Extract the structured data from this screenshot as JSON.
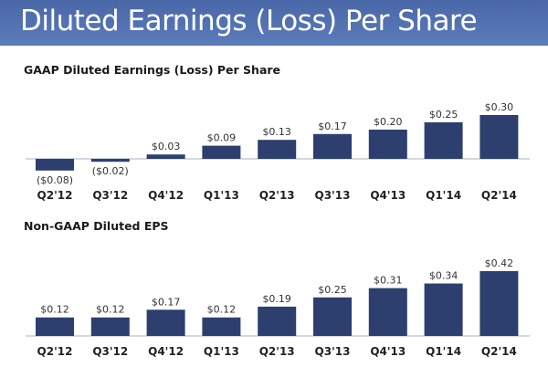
{
  "header": {
    "title": "Diluted Earnings (Loss) Per Share"
  },
  "colors": {
    "bar": "#2c3f6e",
    "header": "#4f6fae",
    "axis": "#a8b0c0"
  },
  "chart_data": [
    {
      "type": "bar",
      "title": "GAAP Diluted Earnings (Loss) Per Share",
      "categories": [
        "Q2'12",
        "Q3'12",
        "Q4'12",
        "Q1'13",
        "Q2'13",
        "Q3'13",
        "Q4'13",
        "Q1'14",
        "Q2'14"
      ],
      "values": [
        -0.08,
        -0.02,
        0.03,
        0.09,
        0.13,
        0.17,
        0.2,
        0.25,
        0.3
      ],
      "labels": [
        "($0.08)",
        "($0.02)",
        "$0.03",
        "$0.09",
        "$0.13",
        "$0.17",
        "$0.20",
        "$0.25",
        "$0.30"
      ],
      "xlabel": "",
      "ylabel": "",
      "grid": false
    },
    {
      "type": "bar",
      "title": "Non-GAAP Diluted EPS",
      "categories": [
        "Q2'12",
        "Q3'12",
        "Q4'12",
        "Q1'13",
        "Q2'13",
        "Q3'13",
        "Q4'13",
        "Q1'14",
        "Q2'14"
      ],
      "values": [
        0.12,
        0.12,
        0.17,
        0.12,
        0.19,
        0.25,
        0.31,
        0.34,
        0.42
      ],
      "labels": [
        "$0.12",
        "$0.12",
        "$0.17",
        "$0.12",
        "$0.19",
        "$0.25",
        "$0.31",
        "$0.34",
        "$0.42"
      ],
      "xlabel": "",
      "ylabel": "",
      "grid": false
    }
  ]
}
